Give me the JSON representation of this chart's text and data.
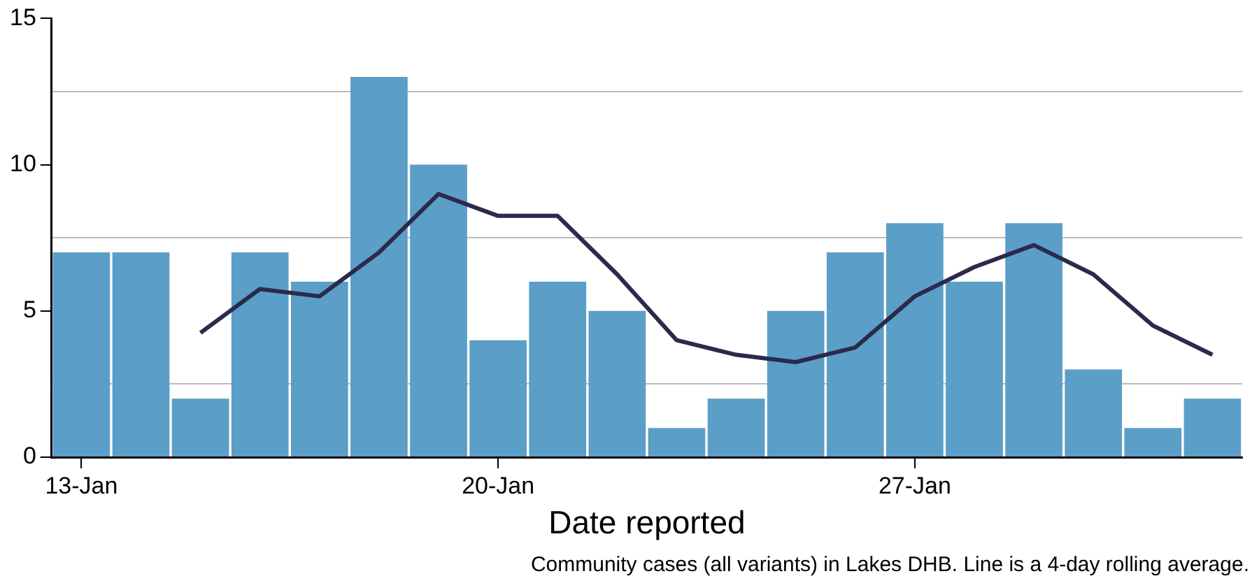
{
  "chart_data": {
    "type": "bar",
    "xlabel": "Date reported",
    "annotations": [
      "Community cases (all variants) in Lakes DHB. Line is a 4-day rolling average."
    ],
    "categories": [
      "13-Jan",
      null,
      null,
      null,
      null,
      null,
      null,
      "20-Jan",
      null,
      null,
      null,
      null,
      null,
      null,
      "27-Jan",
      null,
      null,
      null,
      null,
      null
    ],
    "series": [
      {
        "color": "#5b9ec8",
        "values": [
          7,
          7,
          2,
          7,
          6,
          13,
          10,
          4,
          6,
          5,
          1,
          2,
          5,
          7,
          8,
          6,
          8,
          3,
          1,
          2
        ]
      },
      {
        "type": "line",
        "color": "#2b2a4c",
        "values": [
          null,
          null,
          4.25,
          5.75,
          5.5,
          7,
          9,
          8.25,
          8.25,
          6.25,
          4,
          3.5,
          3.25,
          3.75,
          5.5,
          6.5,
          7.25,
          6.25,
          4.5,
          3.5
        ]
      }
    ],
    "ylim": [
      0,
      15
    ],
    "yticks": [
      0,
      {
        "value": 2.5,
        "label": null
      },
      5,
      {
        "value": 7.5,
        "label": null
      },
      10,
      {
        "value": 12.5,
        "label": null
      },
      15
    ],
    "grid": "y",
    "legend": false
  }
}
